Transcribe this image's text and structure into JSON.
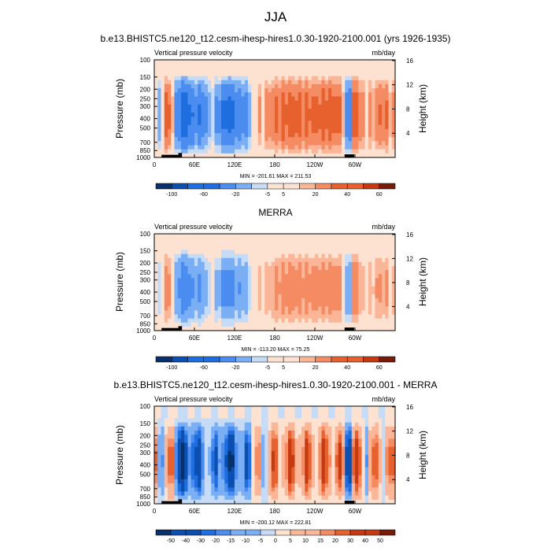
{
  "figure": {
    "title": "JJA"
  },
  "colors": {
    "blue_red_11": [
      "#08306b",
      "#0b4fb0",
      "#1f6ee0",
      "#4a8cf0",
      "#7aaef5",
      "#c6dcf6",
      "#fde2d2",
      "#fbb597",
      "#f58b62",
      "#e6612e",
      "#c63a12",
      "#7a1a0a"
    ]
  },
  "chart_data": [
    {
      "type": "heatmap",
      "title": "b.e13.BHISTC5.ne120_t12.cesm-ihesp-hires1.0.30-1920-2100.001 (yrs 1926-1935)",
      "left_label": "Vertical pressure velocity",
      "right_label": "mb/day",
      "ylabel": "Pressure (mb)",
      "ylabel_right": "Height (km)",
      "yticks": [
        "100",
        "150",
        "200",
        "250",
        "300",
        "400",
        "500",
        "700",
        "850",
        "1000"
      ],
      "yticks_right": [
        "16",
        "12",
        "8",
        "4"
      ],
      "xticks": [
        "0",
        "60E",
        "120E",
        "180",
        "120W",
        "60W"
      ],
      "stats": "MIN = -201.61  MAX = 211.53",
      "colorbar": [
        "-100",
        "-60",
        "-20",
        "-5",
        "5",
        "20",
        "40",
        "60"
      ],
      "colorbar_levels": [
        -100,
        -80,
        -60,
        -40,
        -20,
        -10,
        -5,
        0,
        5,
        10,
        20,
        30,
        40,
        60
      ],
      "y_range_mb": [
        100,
        1000
      ],
      "x_range_deg": [
        0,
        360
      ]
    },
    {
      "type": "heatmap",
      "title": "MERRA",
      "left_label": "Vertical pressure velocity",
      "right_label": "mb/day",
      "ylabel": "Pressure (mb)",
      "ylabel_right": "Height (km)",
      "yticks": [
        "100",
        "150",
        "200",
        "250",
        "300",
        "400",
        "500",
        "700",
        "850",
        "1000"
      ],
      "yticks_right": [
        "16",
        "12",
        "8",
        "4"
      ],
      "xticks": [
        "0",
        "60E",
        "120E",
        "180",
        "120W",
        "60W"
      ],
      "stats": "MIN = -113.20  MAX = 75.25",
      "colorbar": [
        "-100",
        "-60",
        "-20",
        "-5",
        "5",
        "20",
        "40",
        "60"
      ],
      "colorbar_levels": [
        -100,
        -80,
        -60,
        -40,
        -20,
        -10,
        -5,
        0,
        5,
        10,
        20,
        30,
        40,
        60
      ],
      "y_range_mb": [
        100,
        1000
      ],
      "x_range_deg": [
        0,
        360
      ]
    },
    {
      "type": "heatmap",
      "title": "b.e13.BHISTC5.ne120_t12.cesm-ihesp-hires1.0.30-1920-2100.001 - MERRA",
      "left_label": "Vertical pressure velocity",
      "right_label": "mb/day",
      "ylabel": "Pressure (mb)",
      "ylabel_right": "Height (km)",
      "yticks": [
        "100",
        "150",
        "200",
        "250",
        "300",
        "400",
        "500",
        "700",
        "850",
        "1000"
      ],
      "yticks_right": [
        "16",
        "12",
        "8",
        "4"
      ],
      "xticks": [
        "0",
        "60E",
        "120E",
        "180",
        "120W",
        "60W"
      ],
      "stats": "MIN = -200.12  MAX = 222.81",
      "colorbar": [
        "-50",
        "-40",
        "-30",
        "-20",
        "-15",
        "-10",
        "-5",
        "0",
        "5",
        "10",
        "15",
        "20",
        "30",
        "40",
        "50"
      ],
      "colorbar_levels": [
        -50,
        -40,
        -30,
        -20,
        -15,
        -10,
        -5,
        0,
        5,
        10,
        15,
        20,
        30,
        40,
        50
      ],
      "y_range_mb": [
        100,
        1000
      ],
      "x_range_deg": [
        0,
        360
      ]
    }
  ]
}
